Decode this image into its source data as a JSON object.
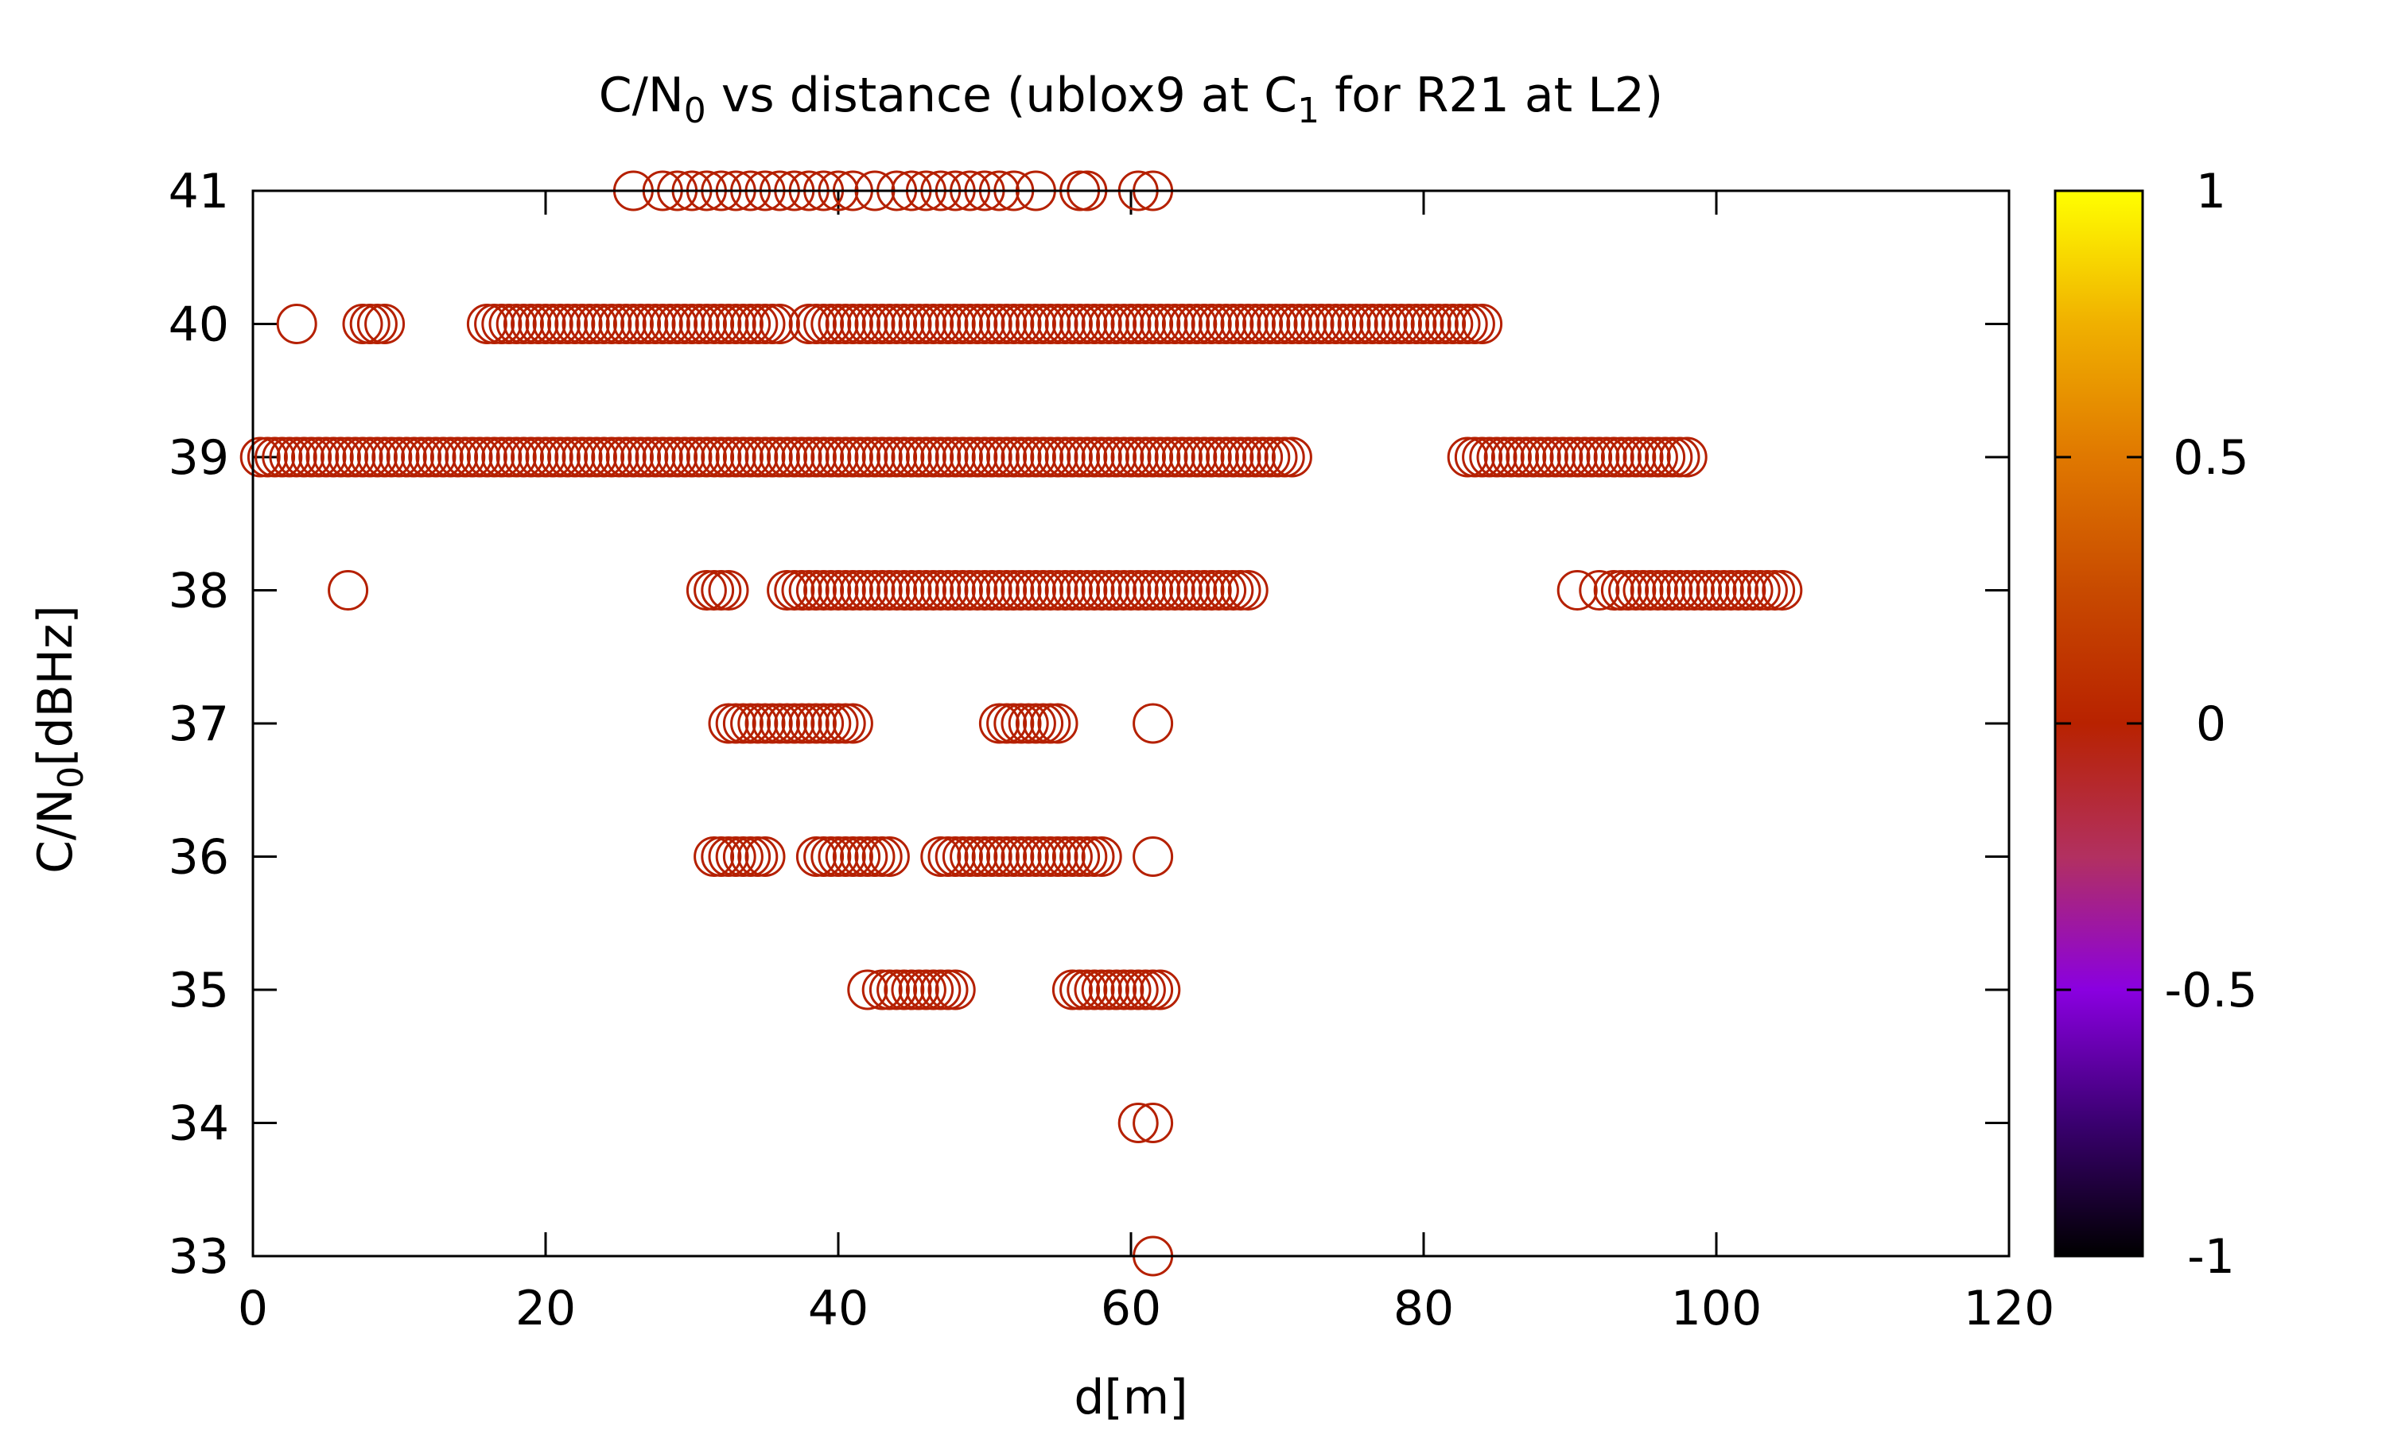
{
  "chart_data": {
    "type": "scatter",
    "title": {
      "prefix": "C/N",
      "sub1": "0",
      "middle": " vs distance (ublox9 at C",
      "sub2": "1",
      "suffix": " for R21 at L2)"
    },
    "xlabel": "d[m]",
    "ylabel": {
      "prefix": "C/N",
      "sub": "0",
      "suffix": "[dBHz]"
    },
    "xlim": [
      0,
      120
    ],
    "ylim": [
      33,
      41
    ],
    "xticks": [
      "0",
      "20",
      "40",
      "60",
      "80",
      "100",
      "120"
    ],
    "yticks": [
      "33",
      "34",
      "35",
      "36",
      "37",
      "38",
      "39",
      "40",
      "41"
    ],
    "colorbar": {
      "range": [
        -1,
        1
      ],
      "ticks": [
        "-1",
        "-0.5",
        "0",
        "0.5",
        "1"
      ],
      "colormap": [
        "#000000",
        "#3a0070",
        "#8a00e0",
        "#b23060",
        "#b82200",
        "#c84a00",
        "#e07800",
        "#f0b000",
        "#ffff00"
      ]
    },
    "marker": {
      "shape": "open-circle",
      "color": "#b52000"
    },
    "segments": [
      {
        "y": 41,
        "points": [
          26,
          28,
          29,
          30,
          31,
          32,
          33,
          34,
          35,
          36,
          37,
          38,
          39,
          40,
          41,
          42.5,
          44,
          45,
          46,
          47,
          48,
          49,
          50,
          51,
          52,
          53.5,
          56.5,
          57,
          60.5,
          61.5
        ]
      },
      {
        "y": 40,
        "points": [
          3,
          7.5,
          8,
          8.5,
          9
        ]
      },
      {
        "y": 40,
        "range": [
          16,
          36
        ],
        "step": 0.5
      },
      {
        "y": 40,
        "range": [
          38,
          84
        ],
        "step": 0.5
      },
      {
        "y": 39,
        "range": [
          0.5,
          28.5
        ],
        "step": 0.5
      },
      {
        "y": 39,
        "range": [
          29,
          71
        ],
        "step": 0.5
      },
      {
        "y": 39,
        "range": [
          83,
          98
        ],
        "step": 0.5
      },
      {
        "y": 38,
        "points": [
          6.5,
          31,
          31.5,
          32,
          32.5
        ]
      },
      {
        "y": 38,
        "range": [
          36.5,
          68
        ],
        "step": 0.5
      },
      {
        "y": 38,
        "points": [
          90.5,
          92
        ]
      },
      {
        "y": 38,
        "range": [
          93,
          104.5
        ],
        "step": 0.5
      },
      {
        "y": 37,
        "range": [
          32.5,
          41
        ],
        "step": 0.5
      },
      {
        "y": 37,
        "range": [
          51,
          55
        ],
        "step": 0.5
      },
      {
        "y": 37,
        "points": [
          61.5
        ]
      },
      {
        "y": 36,
        "range": [
          31.5,
          35
        ],
        "step": 0.5
      },
      {
        "y": 36,
        "range": [
          38.5,
          43.5
        ],
        "step": 0.5
      },
      {
        "y": 36,
        "range": [
          47,
          58
        ],
        "step": 0.5
      },
      {
        "y": 36,
        "points": [
          61.5
        ]
      },
      {
        "y": 35,
        "points": [
          42
        ]
      },
      {
        "y": 35,
        "range": [
          43,
          48
        ],
        "step": 0.5
      },
      {
        "y": 35,
        "range": [
          56,
          62
        ],
        "step": 0.5
      },
      {
        "y": 34,
        "points": [
          60.5,
          61.5
        ]
      },
      {
        "y": 33,
        "points": [
          61.5
        ]
      }
    ]
  }
}
